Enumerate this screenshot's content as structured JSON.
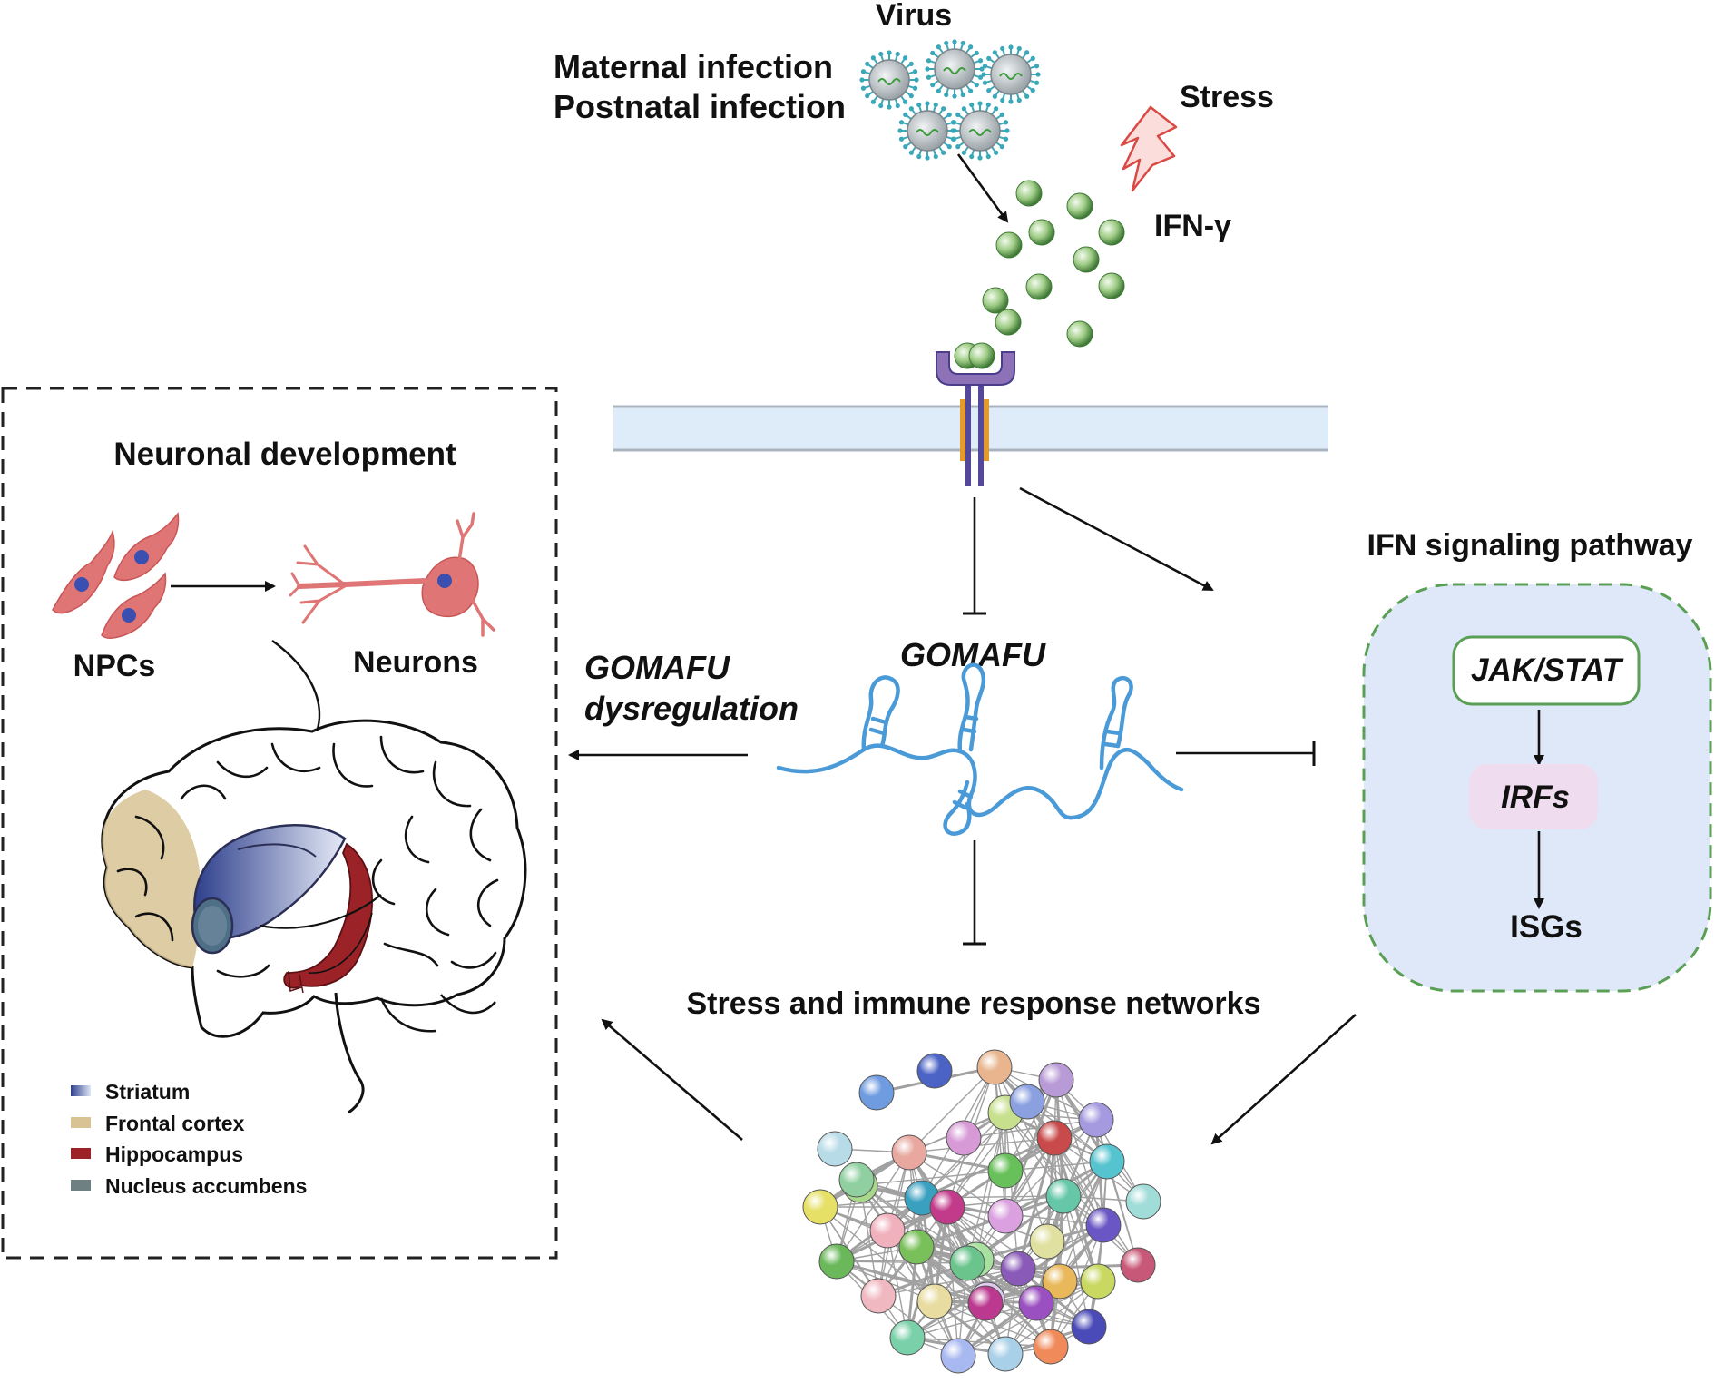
{
  "top": {
    "virus": "Virus",
    "maternal": "Maternal infection",
    "postnatal": "Postnatal infection",
    "stress": "Stress",
    "ifn": "IFN-γ"
  },
  "left_panel": {
    "title": "Neuronal development",
    "npcs": "NPCs",
    "neurons": "Neurons",
    "legend": [
      {
        "label": "Striatum",
        "color": "#3a4f9c"
      },
      {
        "label": "Frontal cortex",
        "color": "#d8c394"
      },
      {
        "label": "Hippocampus",
        "color": "#9b2226"
      },
      {
        "label": "Nucleus accumbens",
        "color": "#6f8082"
      }
    ]
  },
  "center": {
    "gomafu": "GOMAFU",
    "dys_line1": "GOMAFU",
    "dys_line2": "dysregulation",
    "network": "Stress and immune response networks"
  },
  "right_panel": {
    "title": "IFN signaling pathway",
    "jak": "JAK/STAT",
    "irfs": "IRFs",
    "isgs": "ISGs"
  },
  "colors": {
    "rna": "#4a9ad8",
    "membrane": "#deebf8",
    "ifn_ball": "#8dbf72",
    "panel_fill": "#dfe8f8",
    "panel_border": "#5a9f55",
    "neuron": "#e07575"
  }
}
